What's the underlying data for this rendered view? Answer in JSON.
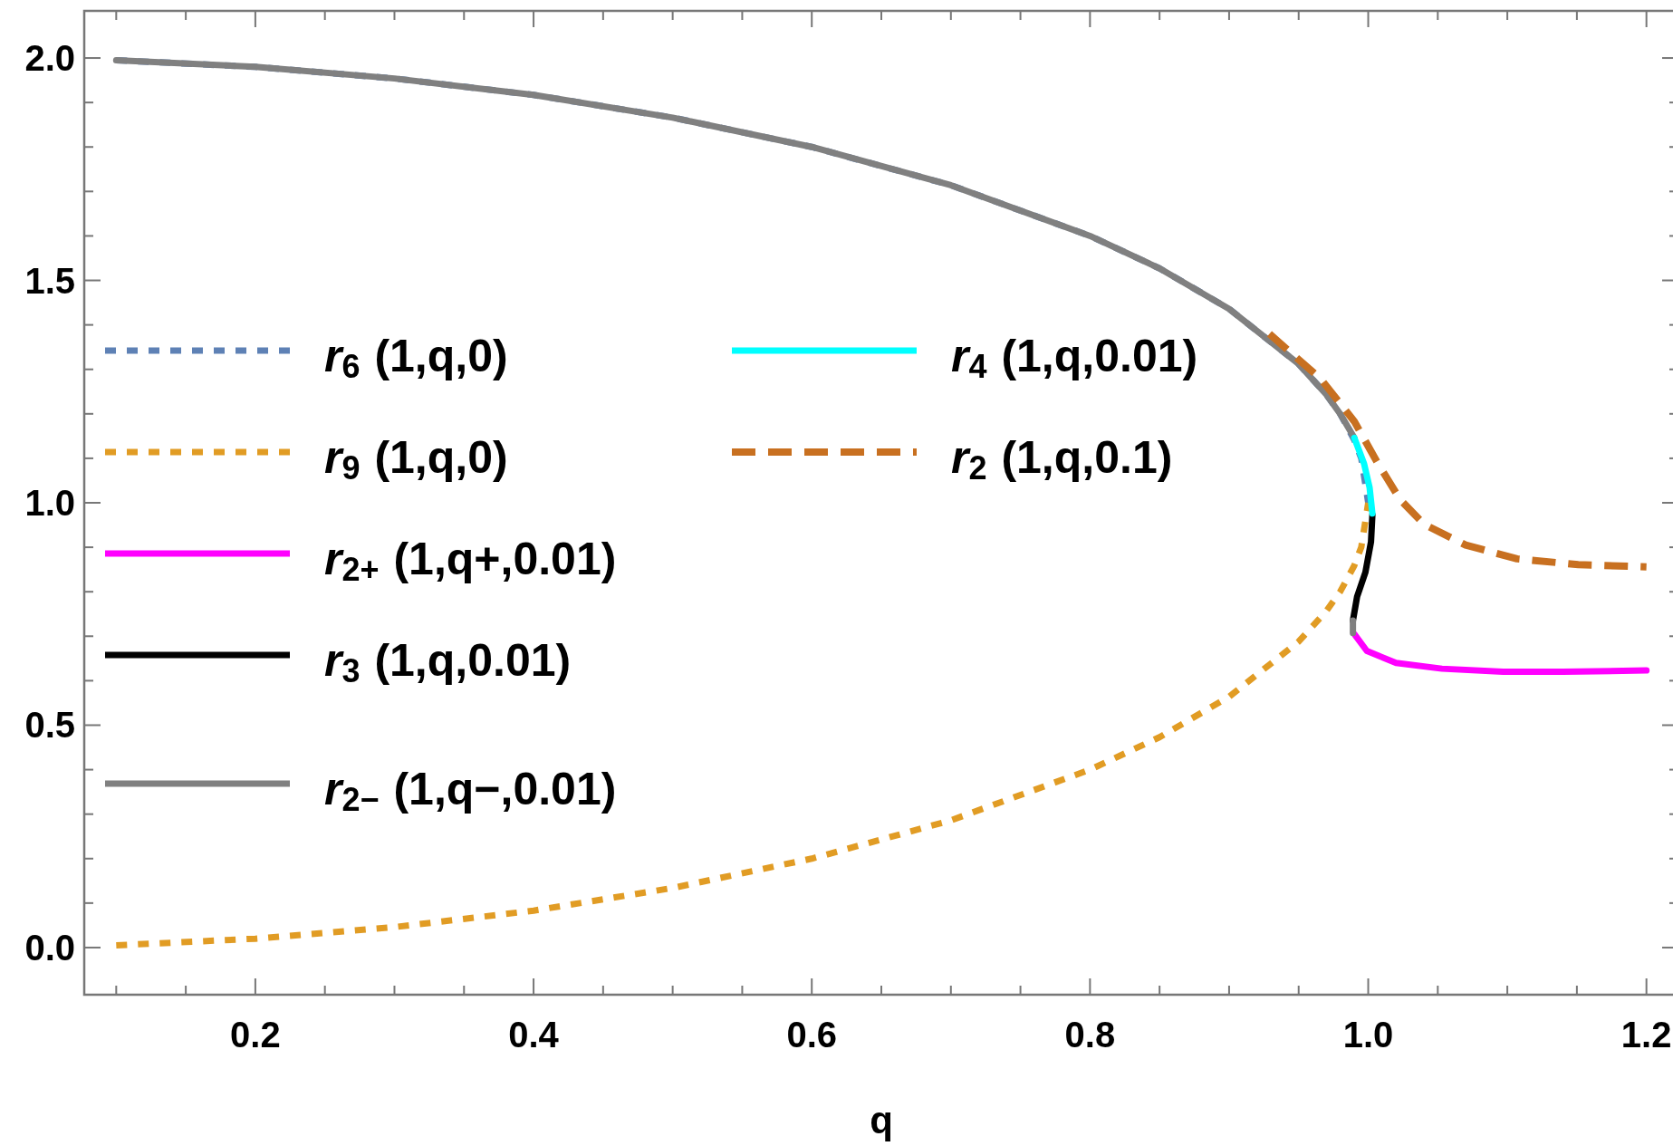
{
  "chart_data": {
    "type": "line",
    "xlabel": "q",
    "xlim": [
      0.077,
      1.223
    ],
    "ylim": [
      -0.106,
      2.106
    ],
    "xticks": [
      {
        "value": 0.1,
        "label": null
      },
      {
        "value": 0.15,
        "label": null
      },
      0.2,
      {
        "value": 0.25,
        "label": null
      },
      {
        "value": 0.3,
        "label": null
      },
      {
        "value": 0.35,
        "label": null
      },
      0.4,
      {
        "value": 0.45,
        "label": null
      },
      {
        "value": 0.5,
        "label": null
      },
      {
        "value": 0.55,
        "label": null
      },
      0.6,
      {
        "value": 0.65,
        "label": null
      },
      {
        "value": 0.7,
        "label": null
      },
      {
        "value": 0.75,
        "label": null
      },
      0.8,
      {
        "value": 0.85,
        "label": null
      },
      {
        "value": 0.9,
        "label": null
      },
      {
        "value": 0.95,
        "label": null
      },
      {
        "value": 1.0,
        "label": "1.0"
      },
      {
        "value": 1.05,
        "label": null
      },
      {
        "value": 1.1,
        "label": null
      },
      {
        "value": 1.15,
        "label": null
      },
      1.2
    ],
    "yticks": [
      {
        "value": 0,
        "label": "0.0"
      },
      {
        "value": 0.1,
        "label": null
      },
      {
        "value": 0.2,
        "label": null
      },
      {
        "value": 0.3,
        "label": null
      },
      {
        "value": 0.4,
        "label": null
      },
      0.5,
      {
        "value": 0.6,
        "label": null
      },
      {
        "value": 0.7,
        "label": null
      },
      {
        "value": 0.8,
        "label": null
      },
      {
        "value": 0.9,
        "label": null
      },
      {
        "value": 1.0,
        "label": "1.0"
      },
      {
        "value": 1.1,
        "label": null
      },
      {
        "value": 1.2,
        "label": null
      },
      {
        "value": 1.3,
        "label": null
      },
      {
        "value": 1.4,
        "label": null
      },
      1.5,
      {
        "value": 1.6,
        "label": null
      },
      {
        "value": 1.7,
        "label": null
      },
      {
        "value": 1.8,
        "label": null
      },
      {
        "value": 1.9,
        "label": null
      },
      {
        "value": 2.0,
        "label": "2.0"
      }
    ],
    "grid": false,
    "legend": "left",
    "marker": "none",
    "series": [
      {
        "name": "r$_{6}$(1,q,0)",
        "color": "#5e81b5",
        "line_style": "dotted",
        "x": [
          0.1,
          0.2,
          0.3,
          0.4,
          0.5,
          0.6,
          0.7,
          0.8,
          0.85,
          0.9,
          0.95,
          0.97,
          0.98,
          0.99,
          0.995,
          1.0
        ],
        "values": [
          1.995,
          1.98,
          1.954,
          1.917,
          1.866,
          1.8,
          1.714,
          1.6,
          1.527,
          1.436,
          1.312,
          1.243,
          1.199,
          1.141,
          1.1,
          1.0
        ]
      },
      {
        "name": "r$_{9}$(1,q,0)",
        "color": "#e19c24",
        "line_style": "dotted",
        "x": [
          0.1,
          0.2,
          0.3,
          0.4,
          0.5,
          0.6,
          0.7,
          0.8,
          0.85,
          0.9,
          0.95,
          0.97,
          0.98,
          0.99,
          0.995,
          1.0
        ],
        "values": [
          0.005,
          0.02,
          0.046,
          0.083,
          0.134,
          0.2,
          0.286,
          0.4,
          0.473,
          0.564,
          0.688,
          0.757,
          0.801,
          0.859,
          0.9,
          1.0
        ]
      },
      {
        "name": "r$_{2+}$(1,q+,0.01)",
        "color": "#ff00ff",
        "line_style": "solid",
        "x": [
          0.99,
          0.999,
          1.02,
          1.053,
          1.097,
          1.14,
          1.2
        ],
        "values": [
          0.705,
          0.667,
          0.64,
          0.627,
          0.62,
          0.62,
          0.623
        ]
      },
      {
        "name": "r$_{3}$(1,q,0.01)",
        "color": "#000000",
        "line_style": "solid",
        "x": [
          1.003,
          1.002,
          0.998,
          0.992,
          0.989
        ],
        "values": [
          0.973,
          0.912,
          0.844,
          0.789,
          0.735
        ]
      },
      {
        "name": "r$_{2−}$(1,q−,0.01)",
        "color": "#808080",
        "line_style": "solid",
        "x": [
          0.1,
          0.2,
          0.3,
          0.4,
          0.5,
          0.6,
          0.7,
          0.8,
          0.85,
          0.9,
          0.95,
          0.97,
          0.98,
          0.99,
          null,
          0.989,
          0.989
        ],
        "values": [
          1.995,
          1.98,
          1.954,
          1.917,
          1.866,
          1.8,
          1.714,
          1.6,
          1.527,
          1.436,
          1.312,
          1.243,
          1.199,
          1.146,
          null,
          0.735,
          0.707
        ]
      },
      {
        "name": "r$_{4}$(1,q,0.01)",
        "color": "#00ffff",
        "line_style": "solid",
        "x": [
          0.99,
          0.997,
          1.001,
          1.003
        ],
        "values": [
          1.146,
          1.088,
          1.034,
          0.976
        ]
      },
      {
        "name": "r$_{2}$(1,q,0.1)",
        "color": "#c87020",
        "line_style": "dashed",
        "x": [
          0.929,
          0.966,
          0.99,
          1.007,
          1.023,
          1.04,
          1.07,
          1.107,
          1.151,
          1.2
        ],
        "values": [
          1.38,
          1.278,
          1.183,
          1.088,
          1.007,
          0.952,
          0.905,
          0.874,
          0.861,
          0.856
        ]
      }
    ]
  }
}
